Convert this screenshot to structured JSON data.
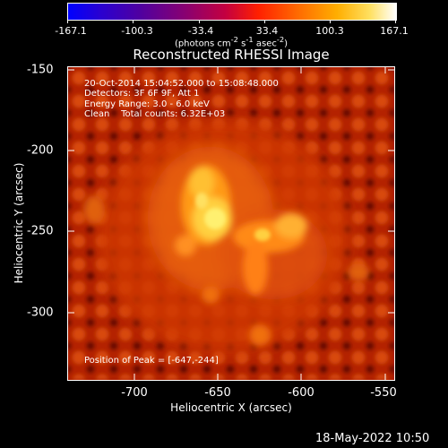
{
  "colorbar": {
    "tick_labels": [
      "-167.1",
      "-100.3",
      "-33.4",
      "33.4",
      "100.3",
      "167.1"
    ],
    "unit_html": "(photons cm<sup>-2</sup> s<sup>-1</sup> asec<sup>-2</sup>)",
    "colors": [
      "#0000ff",
      "#3a00b8",
      "#6a0080",
      "#b00060",
      "#e02020",
      "#ff6000",
      "#ffb000",
      "#ffff80",
      "#ffffff"
    ]
  },
  "plot": {
    "title": "Reconstructed RHESSI Image",
    "xlabel": "Heliocentric X (arcsec)",
    "ylabel": "Heliocentric Y (arcsec)",
    "xticks": [
      "-700",
      "-650",
      "-600",
      "-550"
    ],
    "yticks": [
      "-150",
      "-200",
      "-250",
      "-300"
    ],
    "xlim": [
      -740,
      -545
    ],
    "ylim": [
      -340,
      -145
    ]
  },
  "info": {
    "time": "20-Oct-2014 15:04:52.000 to 15:08:48.000",
    "detectors": "Detectors: 3F 6F 9F, Att 1",
    "energy": "Energy Range: 3.0 - 6.0 keV",
    "clean": "Clean    Total counts: 6.32E+03"
  },
  "peak": {
    "label": "Position of Peak = [-647,-244]"
  },
  "footer": {
    "date": "18-May-2022 10:50"
  },
  "colors": {
    "frame": "#ffffff",
    "background": "#000000"
  }
}
